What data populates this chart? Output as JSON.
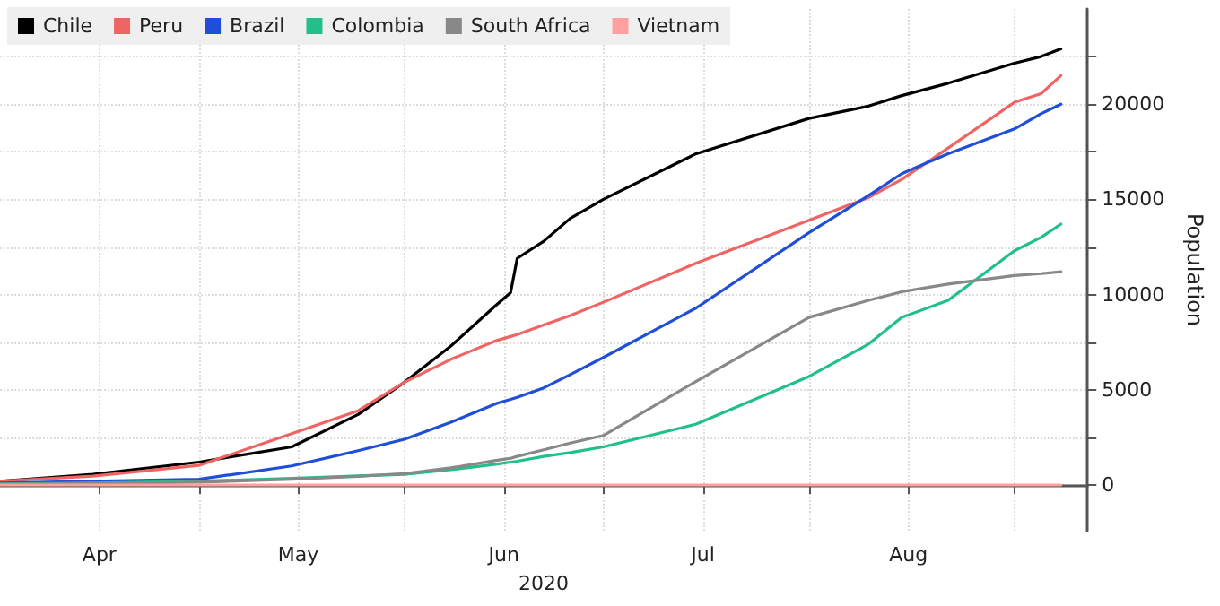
{
  "chart_data": {
    "type": "line",
    "xlabel": "2020",
    "ylabel": "Population",
    "x": [
      "2020-04-01",
      "2020-04-15",
      "2020-05-01",
      "2020-05-15",
      "2020-05-25",
      "2020-06-01",
      "2020-06-08",
      "2020-06-15",
      "2020-06-17",
      "2020-06-18",
      "2020-06-22",
      "2020-06-26",
      "2020-07-01",
      "2020-07-15",
      "2020-08-01",
      "2020-08-10",
      "2020-08-15",
      "2020-08-22",
      "2020-09-01",
      "2020-09-05",
      "2020-09-08"
    ],
    "series": [
      {
        "name": "Chile",
        "color": "#000000",
        "values": [
          200,
          560,
          1200,
          2000,
          3700,
          5400,
          7300,
          9500,
          10100,
          11900,
          12800,
          14000,
          15000,
          17400,
          19250,
          19900,
          20450,
          21100,
          22150,
          22500,
          22900
        ]
      },
      {
        "name": "Peru",
        "color": "#f06464",
        "values": [
          200,
          470,
          1030,
          2700,
          3900,
          5400,
          6600,
          7600,
          7800,
          7900,
          8400,
          8900,
          9600,
          11650,
          13900,
          15100,
          16050,
          17700,
          20100,
          20550,
          21500
        ]
      },
      {
        "name": "Brazil",
        "color": "#1f4fd8",
        "values": [
          100,
          200,
          300,
          1000,
          1800,
          2400,
          3300,
          4300,
          4500,
          4600,
          5100,
          5800,
          6700,
          9300,
          13250,
          15200,
          16350,
          17400,
          18700,
          19500,
          20000
        ]
      },
      {
        "name": "Colombia",
        "color": "#21c08b",
        "values": [
          50,
          100,
          200,
          350,
          480,
          560,
          800,
          1100,
          1200,
          1250,
          1500,
          1700,
          2000,
          3200,
          5700,
          7400,
          8800,
          9700,
          12300,
          13000,
          13700
        ]
      },
      {
        "name": "South Africa",
        "color": "#888888",
        "values": [
          30,
          80,
          150,
          300,
          450,
          600,
          900,
          1300,
          1400,
          1500,
          1850,
          2200,
          2600,
          5450,
          8800,
          9700,
          10150,
          10550,
          11000,
          11100,
          11200
        ]
      },
      {
        "name": "Vietnam",
        "color": "#ffa0a0",
        "values": [
          0,
          0,
          0,
          0,
          0,
          0,
          0,
          0,
          0,
          0,
          0,
          0,
          0,
          0,
          0,
          0,
          0,
          0,
          0,
          0,
          0
        ]
      }
    ],
    "xlim": [
      "2020-04-01",
      "2020-09-12"
    ],
    "xticks": [
      {
        "value": "2020-04-16",
        "label": "Apr"
      },
      {
        "value": "2020-05-01",
        "label": null
      },
      {
        "value": "2020-05-16",
        "label": "May"
      },
      {
        "value": "2020-06-01",
        "label": null
      },
      {
        "value": "2020-06-16",
        "label": "Jun"
      },
      {
        "value": "2020-07-01",
        "label": null
      },
      {
        "value": "2020-07-16",
        "label": "Jul"
      },
      {
        "value": "2020-08-01",
        "label": null
      },
      {
        "value": "2020-08-16",
        "label": "Aug"
      },
      {
        "value": "2020-09-01",
        "label": null
      }
    ],
    "ylim": [
      -2400,
      25000
    ],
    "yticks": [
      0,
      {
        "value": 2500,
        "label": null
      },
      5000,
      {
        "value": 7500,
        "label": null
      },
      10000,
      {
        "value": 12500,
        "label": null
      },
      15000,
      {
        "value": 17500,
        "label": null
      },
      20000,
      {
        "value": 22500,
        "label": null
      }
    ],
    "grid": true,
    "legend": "top left",
    "marker": "none",
    "line_style": "solid"
  }
}
